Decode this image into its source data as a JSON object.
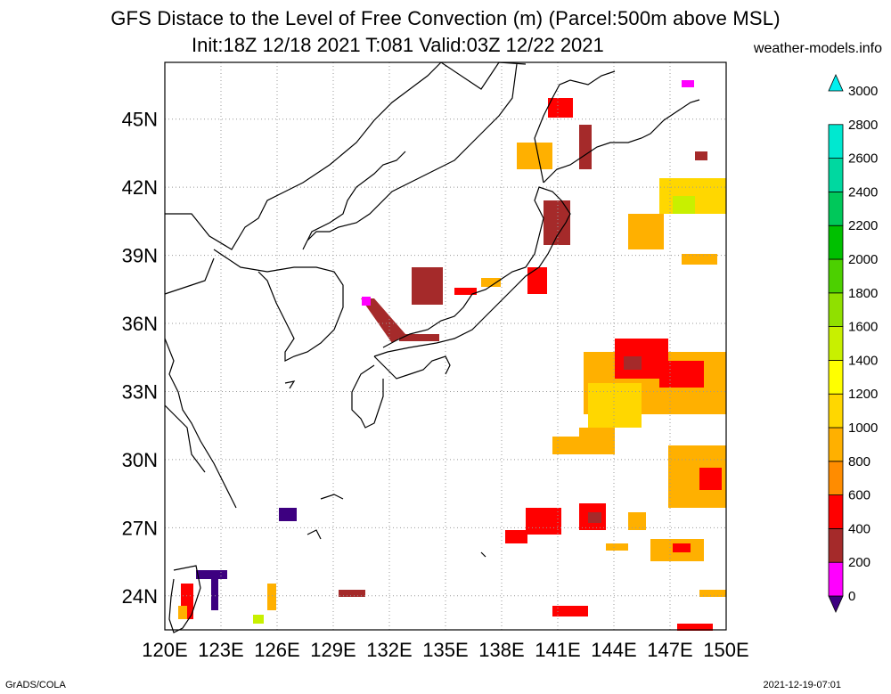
{
  "title_line1": "GFS Distace to the Level of Free Convection (m) (Parcel:500m above MSL)",
  "title_line2": "Init:18Z 12/18 2021 T:081 Valid:03Z 12/22 2021",
  "site": "weather-models.info",
  "footer_left": "GrADS/COLA",
  "footer_right": "2021-12-19-07:01",
  "lat_labels": [
    "45N",
    "42N",
    "39N",
    "36N",
    "33N",
    "30N",
    "27N",
    "24N"
  ],
  "lon_labels": [
    "120E",
    "123E",
    "126E",
    "129E",
    "132E",
    "135E",
    "138E",
    "141E",
    "144E",
    "147E",
    "150E"
  ],
  "colorbar": {
    "levels": [
      "0",
      "200",
      "400",
      "600",
      "800",
      "1000",
      "1200",
      "1400",
      "1600",
      "1800",
      "2000",
      "2200",
      "2400",
      "2600",
      "2800",
      "3000"
    ],
    "colors": [
      "#3d0080",
      "#ff00ff",
      "#a52a2a",
      "#ff0000",
      "#ff8c00",
      "#ffb000",
      "#ffd700",
      "#ffff00",
      "#c8f000",
      "#90e000",
      "#4cd000",
      "#00c000",
      "#00c85a",
      "#00d8a0",
      "#00e8d0",
      "#00f0f0"
    ]
  },
  "map": {
    "lon_range": [
      120,
      150
    ],
    "lat_range": [
      22.5,
      47.5
    ],
    "grid": true
  }
}
